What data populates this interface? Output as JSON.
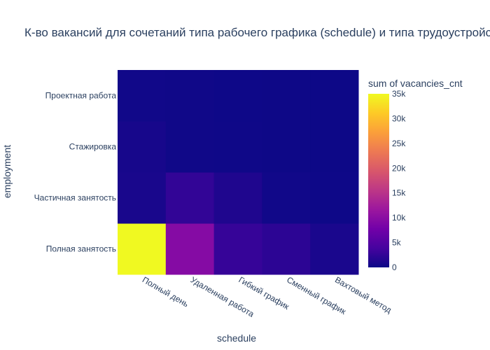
{
  "chart_data": {
    "type": "heatmap",
    "title": "К-во вакансий для сочетаний типа рабочего графика (schedule) и типа трудоустройства (employment)",
    "xlabel": "schedule",
    "ylabel": "employment",
    "x": [
      "Полный день",
      "Удаленная работа",
      "Гибкий график",
      "Сменный график",
      "Вахтовый метод"
    ],
    "y": [
      "Полная занятость",
      "Частичная занятость",
      "Стажировка",
      "Проектная работа"
    ],
    "z": [
      [
        35000,
        9500,
        2800,
        2100,
        900
      ],
      [
        800,
        2500,
        1200,
        300,
        100
      ],
      [
        700,
        200,
        150,
        80,
        20
      ],
      [
        300,
        200,
        100,
        50,
        20
      ]
    ],
    "colorbar": {
      "title": "sum of vacancies_cnt",
      "range": [
        0,
        35000
      ],
      "ticks": [
        0,
        5000,
        10000,
        15000,
        20000,
        25000,
        30000,
        35000
      ],
      "tick_labels": [
        "0",
        "5k",
        "10k",
        "15k",
        "20k",
        "25k",
        "30k",
        "35k"
      ],
      "colorscale": [
        "#0d0887",
        "#46039f",
        "#7201a8",
        "#9c179e",
        "#bd3786",
        "#d8576b",
        "#ed7953",
        "#fb9f3a",
        "#fdca26",
        "#f0f921"
      ]
    }
  }
}
